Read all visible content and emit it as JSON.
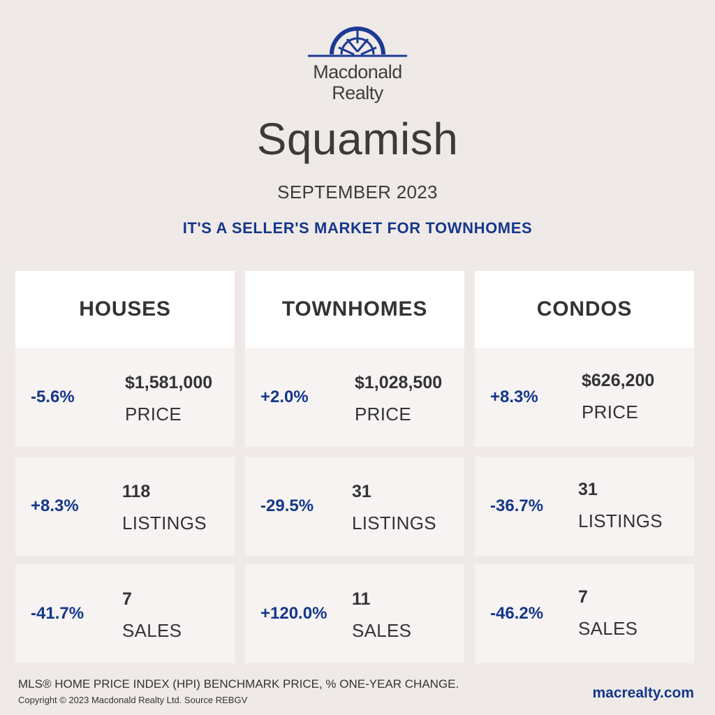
{
  "brand": {
    "name_line1": "Macdonald",
    "name_line2": "Realty",
    "logo_color": "#1c3a93"
  },
  "city": "Squamish",
  "period": "SEPTEMBER 2023",
  "headline": "IT'S A SELLER'S MARKET FOR TOWNHOMES",
  "accent_color": "#15378a",
  "columns": [
    {
      "title": "HOUSES",
      "stats": [
        {
          "change": "-5.6%",
          "value": "$1,581,000",
          "label": "PRICE"
        },
        {
          "change": "+8.3%",
          "value": "118",
          "label": "LISTINGS"
        },
        {
          "change": "-41.7%",
          "value": "7",
          "label": "SALES"
        }
      ]
    },
    {
      "title": "TOWNHOMES",
      "stats": [
        {
          "change": "+2.0%",
          "value": "$1,028,500",
          "label": "PRICE"
        },
        {
          "change": "-29.5%",
          "value": "31",
          "label": "LISTINGS"
        },
        {
          "change": "+120.0%",
          "value": "11",
          "label": "SALES"
        }
      ]
    },
    {
      "title": "CONDOS",
      "stats": [
        {
          "change": "+8.3%",
          "value": "$626,200",
          "label": "PRICE"
        },
        {
          "change": "-36.7%",
          "value": "31",
          "label": "LISTINGS"
        },
        {
          "change": "-46.2%",
          "value": "7",
          "label": "SALES"
        }
      ]
    }
  ],
  "footer": {
    "note": "MLS® HOME PRICE INDEX (HPI) BENCHMARK PRICE, % ONE-YEAR CHANGE.",
    "copyright": "Copyright © 2023 Macdonald Realty Ltd. Source REBGV",
    "website": "macrealty.com"
  }
}
